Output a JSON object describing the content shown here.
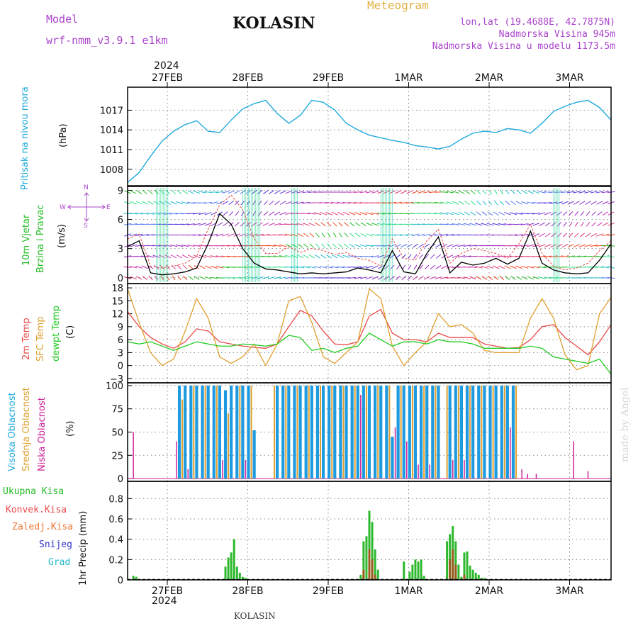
{
  "header": {
    "model_label": "Model",
    "model_name": "wrf-nmm_v3.9.1  e1km",
    "station": "KOLASIN",
    "product": "Meteogram",
    "coords": "lon,lat (19.4688E, 42.7875N)",
    "elevation": "Nadmorska Visina 945m",
    "model_elevation": "Nadmorska Visina u modelu 1173.5m",
    "year_top": "2024",
    "year_bottom": "2024",
    "footer_station": "KOLASIN",
    "credit": "made by Angel"
  },
  "colors": {
    "pressure": "#22aadd",
    "temp2m": "#e84a4a",
    "sfc_temp": "#e0a030",
    "dewpt": "#22cc22",
    "cloud_high": "#1e9be0",
    "cloud_mid": "#e0a030",
    "cloud_low": "#cc2299",
    "precip_total": "#2db82d",
    "precip_conv": "#9a5a20",
    "wind_speed": "#000000",
    "wind_gust": "#e84a4a"
  },
  "labels": {
    "pressure_name": "Pritisak na nivou mora",
    "pressure_unit": "(hPa)",
    "wind_name1": "10m Vjetar",
    "wind_name2": "Brzina i Pravac",
    "wind_unit": "(m/s)",
    "compass_n": "N",
    "compass_s": "S",
    "compass_w": "W",
    "compass_e": "E",
    "temp_2m": "2m Temp",
    "temp_sfc": "SFC Temp",
    "temp_dewpt": "dewpt Temp",
    "temp_unit": "(C)",
    "cloud_high": "Visoka Oblacnost",
    "cloud_mid": "Srednja Oblacnost",
    "cloud_low": "Niska Oblacnost",
    "cloud_unit": "(%)",
    "precip_total": "Ukupna Kisa",
    "precip_conv": "Konvek.Kisa",
    "precip_frz": "Zaledj.Kisa",
    "precip_snow": "Snijeg",
    "precip_hail": "Grad",
    "precip_unit": "1hr Precip (mm)"
  },
  "chart_data": [
    {
      "type": "line",
      "name": "pressure",
      "x_ticks": [
        "27FEB",
        "28FEB",
        "29FEB",
        "1MAR",
        "2MAR",
        "3MAR"
      ],
      "y_ticks": [
        1008,
        1011,
        1014,
        1017
      ],
      "ylim": [
        1005.5,
        1020.5
      ],
      "grid": true,
      "series": [
        {
          "name": "Pritisak na nivou mora",
          "x": [
            0,
            4,
            8,
            12,
            16,
            20,
            24,
            28,
            32,
            36,
            40,
            44,
            48,
            52,
            56,
            60,
            64,
            68,
            72,
            76,
            80,
            84,
            88,
            92,
            96,
            100,
            104,
            108,
            112,
            116,
            120,
            124,
            128,
            132,
            136,
            140,
            144,
            148,
            152,
            156,
            160,
            164,
            168
          ],
          "values": [
            1006.0,
            1007.5,
            1010.0,
            1012.3,
            1013.8,
            1014.8,
            1015.4,
            1013.8,
            1013.6,
            1015.5,
            1017.2,
            1018.0,
            1018.5,
            1016.5,
            1015.0,
            1016.2,
            1018.5,
            1018.2,
            1017.0,
            1015.0,
            1014.0,
            1013.2,
            1012.8,
            1012.4,
            1012.1,
            1011.6,
            1011.4,
            1011.1,
            1011.5,
            1012.6,
            1013.5,
            1013.8,
            1013.6,
            1014.2,
            1014.0,
            1013.5,
            1015.0,
            1016.8,
            1017.6,
            1018.2,
            1018.5,
            1017.4,
            1015.5
          ]
        }
      ]
    },
    {
      "type": "line",
      "name": "wind",
      "y_ticks": [
        0,
        3,
        6,
        9
      ],
      "ylim": [
        -0.6,
        9.4
      ],
      "grid": true,
      "series": [
        {
          "name": "speed",
          "x": [
            0,
            4,
            8,
            12,
            16,
            20,
            24,
            28,
            32,
            36,
            40,
            44,
            48,
            52,
            56,
            60,
            64,
            68,
            72,
            76,
            80,
            84,
            88,
            92,
            96,
            100,
            104,
            108,
            112,
            116,
            120,
            124,
            128,
            132,
            136,
            140,
            144,
            148,
            152,
            156,
            160,
            164,
            168
          ],
          "values": [
            3.2,
            3.8,
            0.5,
            0.3,
            0.4,
            0.6,
            1.0,
            3.5,
            6.6,
            5.5,
            3.0,
            1.5,
            0.9,
            0.8,
            0.6,
            0.4,
            0.5,
            0.4,
            0.5,
            0.6,
            1.0,
            0.8,
            0.5,
            2.8,
            0.6,
            0.4,
            2.5,
            4.2,
            0.5,
            1.6,
            1.3,
            1.5,
            2.0,
            1.4,
            2.0,
            4.8,
            1.5,
            0.8,
            0.5,
            0.4,
            0.5,
            1.8,
            3.5
          ]
        },
        {
          "name": "gust",
          "x": [
            0,
            4,
            8,
            12,
            16,
            20,
            24,
            28,
            32,
            36,
            40,
            44,
            48,
            52,
            56,
            60,
            64,
            68,
            72,
            76,
            80,
            84,
            88,
            92,
            96,
            100,
            104,
            108,
            112,
            116,
            120,
            124,
            128,
            132,
            136,
            140,
            144,
            148,
            152,
            156,
            160,
            164,
            168
          ],
          "values": [
            4.0,
            4.5,
            1.2,
            1.0,
            1.2,
            1.5,
            2.2,
            5.0,
            7.5,
            8.5,
            7.0,
            4.0,
            2.5,
            2.5,
            3.2,
            2.6,
            3.0,
            2.8,
            2.4,
            2.6,
            2.0,
            1.8,
            1.2,
            4.0,
            2.0,
            1.8,
            3.8,
            5.0,
            1.5,
            2.5,
            3.0,
            2.8,
            2.5,
            2.0,
            3.5,
            5.5,
            2.5,
            1.2,
            0.8,
            1.0,
            1.5,
            2.8,
            3.8
          ]
        }
      ]
    },
    {
      "type": "line",
      "name": "temperature",
      "y_ticks": [
        -3,
        0,
        3,
        6,
        9,
        12,
        15,
        18
      ],
      "ylim": [
        -4,
        19
      ],
      "grid": true,
      "series": [
        {
          "name": "2m Temp",
          "x": [
            0,
            4,
            8,
            12,
            16,
            20,
            24,
            28,
            32,
            36,
            40,
            44,
            48,
            52,
            56,
            60,
            64,
            68,
            72,
            76,
            80,
            84,
            88,
            92,
            96,
            100,
            104,
            108,
            112,
            116,
            120,
            124,
            128,
            132,
            136,
            140,
            144,
            148,
            152,
            156,
            160,
            164,
            168
          ],
          "values": [
            12.5,
            9.0,
            6.5,
            5.0,
            4.0,
            5.5,
            8.5,
            8.0,
            5.5,
            5.0,
            4.5,
            4.2,
            4.0,
            5.0,
            9.0,
            12.8,
            11.5,
            8.0,
            5.0,
            4.8,
            5.5,
            11.5,
            13.0,
            7.5,
            6.0,
            6.0,
            5.5,
            7.5,
            6.5,
            6.5,
            6.5,
            5.0,
            4.5,
            4.0,
            4.2,
            6.0,
            9.0,
            9.5,
            6.5,
            4.5,
            2.5,
            5.5,
            9.5
          ]
        },
        {
          "name": "SFC Temp",
          "x": [
            0,
            4,
            8,
            12,
            16,
            20,
            24,
            28,
            32,
            36,
            40,
            44,
            48,
            52,
            56,
            60,
            64,
            68,
            72,
            76,
            80,
            84,
            88,
            92,
            96,
            100,
            104,
            108,
            112,
            116,
            120,
            124,
            128,
            132,
            136,
            140,
            144,
            148,
            152,
            156,
            160,
            164,
            168
          ],
          "values": [
            17.8,
            10.0,
            3.0,
            0.0,
            1.5,
            8.0,
            15.5,
            11.0,
            2.0,
            0.5,
            2.0,
            5.0,
            0.0,
            5.0,
            15.0,
            16.0,
            10.0,
            2.0,
            0.5,
            3.0,
            5.5,
            17.8,
            15.5,
            4.5,
            0.0,
            3.0,
            5.5,
            12.0,
            9.0,
            9.5,
            7.5,
            3.5,
            3.0,
            3.0,
            3.0,
            11.0,
            15.5,
            11.0,
            2.5,
            -1.0,
            0.0,
            12.0,
            15.8
          ]
        },
        {
          "name": "dewpt Temp",
          "x": [
            0,
            4,
            8,
            12,
            16,
            20,
            24,
            28,
            32,
            36,
            40,
            44,
            48,
            52,
            56,
            60,
            64,
            68,
            72,
            76,
            80,
            84,
            88,
            92,
            96,
            100,
            104,
            108,
            112,
            116,
            120,
            124,
            128,
            132,
            136,
            140,
            144,
            148,
            152,
            156,
            160,
            164,
            168
          ],
          "values": [
            5.5,
            5.0,
            5.5,
            4.5,
            3.5,
            4.5,
            5.5,
            5.0,
            4.5,
            4.5,
            5.0,
            4.8,
            4.5,
            5.0,
            7.0,
            6.5,
            3.5,
            4.0,
            3.0,
            4.0,
            4.5,
            7.5,
            6.0,
            4.5,
            5.5,
            5.5,
            5.0,
            6.0,
            5.5,
            5.5,
            5.0,
            4.0,
            4.0,
            4.0,
            4.0,
            4.5,
            4.0,
            2.0,
            1.5,
            1.0,
            0.5,
            1.5,
            -2.0
          ]
        }
      ]
    },
    {
      "type": "bar",
      "name": "cloud",
      "y_ticks": [
        0,
        25,
        50,
        75,
        100
      ],
      "ylim": [
        -3,
        103
      ],
      "grid": true,
      "series": [
        {
          "name": "Visoka Oblacnost",
          "x": [
            18,
            20,
            22,
            24,
            26,
            28,
            30,
            32,
            34,
            36,
            38,
            40,
            42,
            44,
            46,
            48,
            50,
            52,
            54,
            56,
            58,
            60,
            62,
            64,
            66,
            68,
            70,
            72,
            74,
            76,
            78,
            80,
            82,
            84,
            86,
            88,
            90,
            92,
            94,
            96,
            98,
            100,
            102,
            104,
            106,
            108,
            110,
            112,
            114,
            116,
            118,
            120,
            122,
            124,
            126,
            128,
            130,
            132,
            134
          ],
          "values": [
            100,
            100,
            100,
            100,
            100,
            100,
            100,
            100,
            95,
            100,
            100,
            100,
            100,
            52,
            0,
            0,
            0,
            100,
            100,
            100,
            100,
            100,
            100,
            100,
            100,
            100,
            100,
            100,
            100,
            100,
            100,
            100,
            100,
            100,
            100,
            100,
            100,
            45,
            100,
            100,
            100,
            100,
            100,
            100,
            100,
            100,
            0,
            100,
            100,
            100,
            100,
            100,
            100,
            100,
            100,
            100,
            100,
            100,
            100
          ]
        },
        {
          "name": "Srednja Oblacnost",
          "x": [
            19,
            23,
            27,
            31,
            35,
            39,
            43,
            51,
            55,
            59,
            63,
            67,
            71,
            75,
            79,
            83,
            87,
            91,
            95,
            99,
            103,
            107,
            111,
            115,
            119,
            123,
            127,
            131,
            135
          ],
          "values": [
            85,
            100,
            100,
            100,
            70,
            100,
            100,
            100,
            100,
            100,
            100,
            100,
            100,
            100,
            100,
            100,
            100,
            100,
            100,
            100,
            100,
            100,
            100,
            100,
            100,
            100,
            100,
            100,
            100
          ]
        },
        {
          "name": "Niska Oblacnost",
          "x": [
            2,
            17,
            21,
            33,
            41,
            81,
            93,
            97,
            101,
            105,
            113,
            117,
            133,
            137,
            139,
            142,
            155,
            160
          ],
          "values": [
            50,
            40,
            10,
            20,
            20,
            90,
            55,
            40,
            15,
            15,
            20,
            20,
            55,
            10,
            5,
            5,
            40,
            8
          ]
        }
      ]
    },
    {
      "type": "bar",
      "name": "precip",
      "y_ticks": [
        0,
        0.2,
        0.4,
        0.6,
        0.8
      ],
      "ylim": [
        0,
        0.97
      ],
      "grid": true,
      "series": [
        {
          "name": "Ukupna Kisa",
          "x": [
            2,
            3,
            34,
            35,
            36,
            37,
            38,
            39,
            40,
            41,
            81,
            82,
            83,
            84,
            85,
            86,
            87,
            96,
            98,
            99,
            100,
            101,
            102,
            103,
            111,
            112,
            113,
            114,
            115,
            116,
            117,
            118,
            119,
            120,
            121,
            122,
            123,
            124
          ],
          "values": [
            0.04,
            0.03,
            0.13,
            0.22,
            0.27,
            0.4,
            0.13,
            0.07,
            0.03,
            0.02,
            0.05,
            0.38,
            0.43,
            0.68,
            0.57,
            0.3,
            0.1,
            0.18,
            0.08,
            0.15,
            0.2,
            0.18,
            0.2,
            0.04,
            0.38,
            0.45,
            0.53,
            0.38,
            0.15,
            0.03,
            0.27,
            0.28,
            0.14,
            0.1,
            0.07,
            0.05,
            0.02,
            0.02
          ]
        },
        {
          "name": "Konvek.Kisa",
          "x": [
            82,
            84,
            85,
            86,
            112,
            113,
            114,
            117
          ],
          "values": [
            0.1,
            0.3,
            0.2,
            0.05,
            0.2,
            0.3,
            0.15,
            0.05
          ]
        }
      ]
    }
  ]
}
